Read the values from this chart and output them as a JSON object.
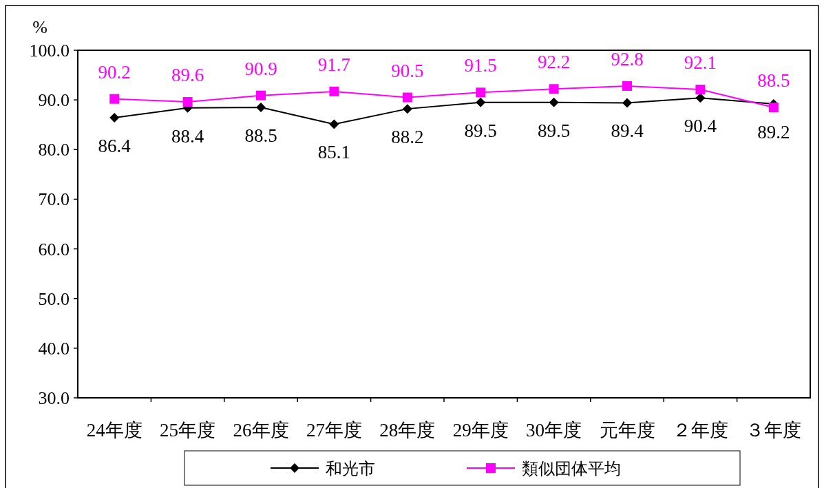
{
  "chart_data": {
    "type": "line",
    "ylabel": "%",
    "categories": [
      "24年度",
      "25年度",
      "26年度",
      "27年度",
      "28年度",
      "29年度",
      "30年度",
      "元年度",
      "２年度",
      "３年度"
    ],
    "series": [
      {
        "name": "和光市",
        "color": "#000000",
        "marker": "diamond",
        "values": [
          86.4,
          88.4,
          88.5,
          85.1,
          88.2,
          89.5,
          89.5,
          89.4,
          90.4,
          89.2
        ]
      },
      {
        "name": "類似団体平均",
        "color": "#ff00ff",
        "marker": "square",
        "values": [
          90.2,
          89.6,
          90.9,
          91.7,
          90.5,
          91.5,
          92.2,
          92.8,
          92.1,
          88.5
        ]
      }
    ],
    "ylim": [
      30,
      100
    ],
    "yticks": [
      {
        "value": 30,
        "label": "30.0"
      },
      {
        "value": 40,
        "label": "40.0"
      },
      {
        "value": 50,
        "label": "50.0"
      },
      {
        "value": 60,
        "label": "60.0"
      },
      {
        "value": 70,
        "label": "70.0"
      },
      {
        "value": 80,
        "label": "80.0"
      },
      {
        "value": 90,
        "label": "90.0"
      },
      {
        "value": 100,
        "label": "100.0"
      }
    ],
    "data_labels": true,
    "grid": false,
    "legend": "bottom",
    "line_style": "solid"
  }
}
